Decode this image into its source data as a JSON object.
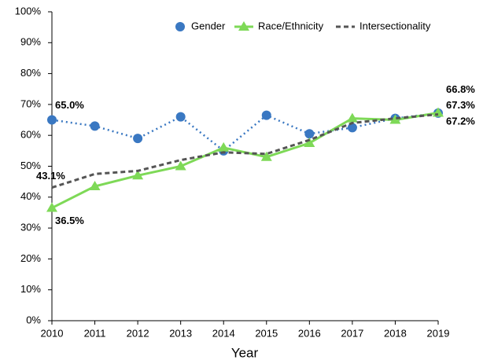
{
  "chart_data": {
    "type": "line",
    "x_label": "Year",
    "x": [
      2010,
      2011,
      2012,
      2013,
      2014,
      2015,
      2016,
      2017,
      2018,
      2019
    ],
    "xlim": [
      2010,
      2019
    ],
    "xticks": [
      2010,
      2011,
      2012,
      2013,
      2014,
      2015,
      2016,
      2017,
      2018,
      2019
    ],
    "ylim": [
      0,
      100
    ],
    "yticks": [
      {
        "value": 0,
        "label": "0%"
      },
      {
        "value": 10,
        "label": "10%"
      },
      {
        "value": 20,
        "label": "20%"
      },
      {
        "value": 30,
        "label": "30%"
      },
      {
        "value": 40,
        "label": "40%"
      },
      {
        "value": 50,
        "label": "50%"
      },
      {
        "value": 60,
        "label": "60%"
      },
      {
        "value": 70,
        "label": "70%"
      },
      {
        "value": 80,
        "label": "80%"
      },
      {
        "value": 90,
        "label": "90%"
      },
      {
        "value": 100,
        "label": "100%"
      }
    ],
    "legend": "upper right",
    "series": [
      {
        "name": "Gender",
        "color": "#3a78c2",
        "line": "dotted",
        "marker": "circle",
        "values": [
          65.0,
          63,
          59,
          66,
          55,
          66.5,
          60.5,
          62.5,
          65.5,
          67.2
        ],
        "value_labels": [
          "65.0%",
          null,
          null,
          null,
          null,
          null,
          null,
          null,
          null,
          "67.2%"
        ]
      },
      {
        "name": "Race/Ethnicity",
        "color": "#7ed957",
        "line": "solid",
        "marker": "triangle",
        "values": [
          36.5,
          43.5,
          47,
          50,
          56,
          53,
          57.5,
          65.5,
          65,
          67.3
        ],
        "value_labels": [
          "36.5%",
          null,
          null,
          null,
          null,
          null,
          null,
          null,
          null,
          "67.3%"
        ]
      },
      {
        "name": "Intersectionality",
        "color": "#555555",
        "line": "dashed",
        "marker": "none",
        "values": [
          43.1,
          47.5,
          48.5,
          52,
          54.5,
          54,
          58.5,
          64,
          65.5,
          66.8
        ],
        "value_labels": [
          "43.1%",
          null,
          null,
          null,
          null,
          null,
          null,
          null,
          null,
          "66.8%"
        ]
      }
    ]
  }
}
